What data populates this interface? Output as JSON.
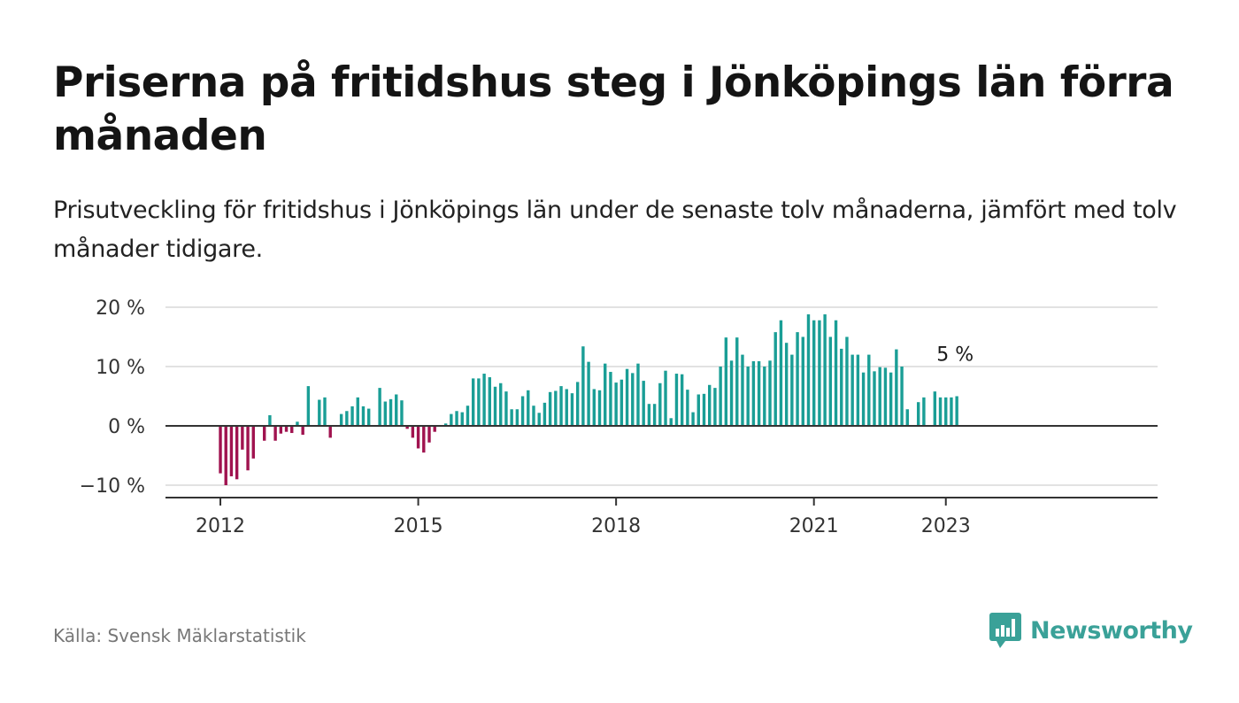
{
  "header": {
    "title": "Priserna på fritidshus steg i Jönköpings län förra månaden",
    "subtitle": "Prisutveckling för fritidshus i Jönköpings län under de senaste tolv månaderna, jämfört med tolv månader tidigare."
  },
  "footer": {
    "source": "Källa: Svensk Mäklarstatistik",
    "brand": "Newsworthy"
  },
  "colors": {
    "positive": "#1a9e96",
    "negative": "#a0134f",
    "grid": "#d8d8d8",
    "axis": "#333333",
    "brand": "#3aa198"
  },
  "chart_data": {
    "type": "bar",
    "title": "Priserna på fritidshus steg i Jönköpings län förra månaden",
    "xlabel": "",
    "ylabel": "",
    "ylim": [
      -12,
      20
    ],
    "y_ticks": [
      20,
      10,
      0,
      -10
    ],
    "y_tick_labels": [
      "20 %",
      "10 %",
      "0 %",
      "−10 %"
    ],
    "x_ticks": [
      {
        "label": "2012",
        "date": "2012-01"
      },
      {
        "label": "2015",
        "date": "2015-01"
      },
      {
        "label": "2018",
        "date": "2018-01"
      },
      {
        "label": "2021",
        "date": "2021-01"
      },
      {
        "label": "2023",
        "date": "2023-01"
      }
    ],
    "grid": true,
    "legend": "none",
    "last_value_label": "5 %",
    "period_start": "2011-01",
    "period_end": "2023-03",
    "period_unit": "month",
    "values": [
      null,
      null,
      null,
      null,
      null,
      null,
      null,
      null,
      null,
      null,
      null,
      null,
      -8,
      -10,
      -8.5,
      -9,
      -4,
      -7.5,
      -5.5,
      0,
      -2.5,
      1.8,
      -2.5,
      -1.3,
      -1,
      -1.2,
      0.7,
      -1.5,
      6.7,
      0,
      4.4,
      4.8,
      -2,
      0,
      2,
      2.5,
      3.3,
      4.8,
      3.3,
      2.9,
      0,
      6.4,
      4.1,
      4.5,
      5.3,
      4.3,
      -0.5,
      -2,
      -3.8,
      -4.5,
      -2.8,
      -1,
      0,
      0.4,
      2,
      2.5,
      2.3,
      3.4,
      8,
      8,
      8.8,
      8.2,
      6.6,
      7.2,
      5.8,
      2.8,
      2.8,
      5,
      6,
      3.4,
      2.2,
      3.9,
      5.7,
      5.9,
      6.7,
      6.2,
      5.5,
      7.4,
      13.4,
      10.8,
      6.2,
      6,
      10.5,
      9.1,
      7.3,
      7.8,
      9.6,
      8.9,
      10.5,
      7.6,
      3.7,
      3.7,
      7.2,
      9.3,
      1.3,
      8.8,
      8.7,
      6.1,
      2.3,
      5.3,
      5.4,
      6.9,
      6.4,
      10,
      14.9,
      11,
      14.9,
      12,
      10,
      10.9,
      10.9,
      10,
      11,
      15.8,
      17.8,
      14,
      12,
      15.8,
      15,
      18.8,
      17.8,
      17.8,
      18.8,
      15,
      17.8,
      13,
      15,
      12,
      12,
      9,
      12,
      9.2,
      9.9,
      9.8,
      9,
      12.9,
      10,
      2.8,
      null,
      4,
      4.8,
      null,
      5.8,
      4.8,
      4.8,
      4.8,
      5
    ]
  }
}
